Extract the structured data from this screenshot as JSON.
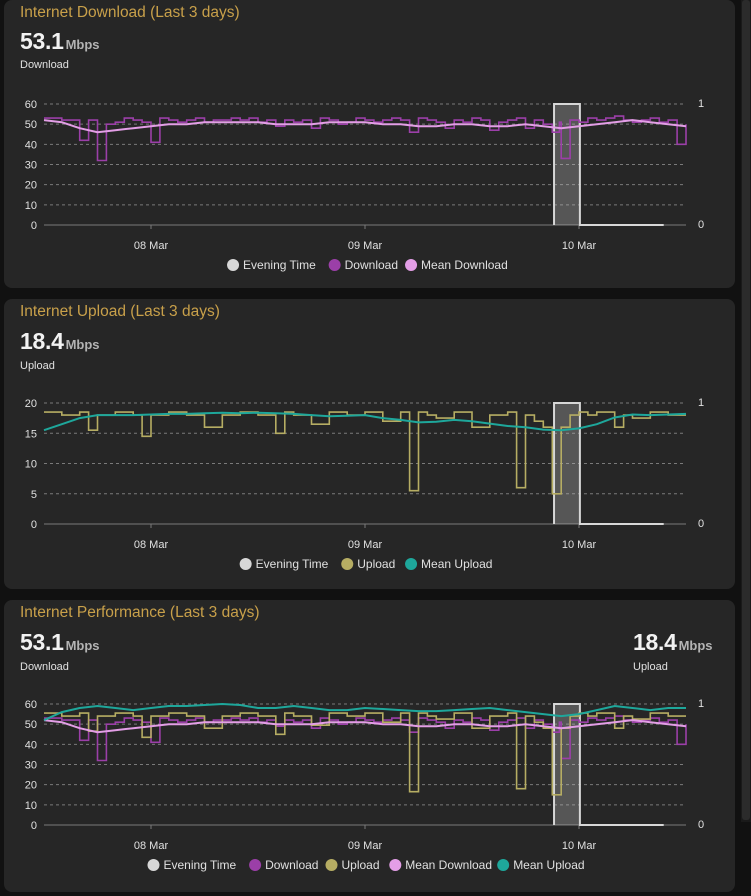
{
  "colors": {
    "title": "#c8a04a",
    "download": "#9b3fa8",
    "mean_download": "#e39ee6",
    "upload": "#b6ad63",
    "mean_upload": "#1ea79b",
    "evening": "#d7d7d7"
  },
  "cards": [
    {
      "title": "Internet Download (Last 3 days)",
      "stat_value": "53.1",
      "stat_unit": "Mbps",
      "stat_label": "Download",
      "legend": [
        "Evening Time",
        "Download",
        "Mean Download"
      ]
    },
    {
      "title": "Internet Upload (Last 3 days)",
      "stat_value": "18.4",
      "stat_unit": "Mbps",
      "stat_label": "Upload",
      "legend": [
        "Evening Time",
        "Upload",
        "Mean Upload"
      ]
    },
    {
      "title": "Internet Performance (Last 3 days)",
      "stat_value": "53.1",
      "stat_unit": "Mbps",
      "stat_label": "Download",
      "stat2_value": "18.4",
      "stat2_unit": "Mbps",
      "stat2_label": "Upload",
      "legend": [
        "Evening Time",
        "Download",
        "Upload",
        "Mean Download",
        "Mean Upload"
      ]
    }
  ],
  "chart_data": [
    {
      "type": "line",
      "x_unit": "hours from start (3-day window)",
      "x_range": [
        0,
        72
      ],
      "x_ticks": [
        {
          "x": 12,
          "label": "08 Mar"
        },
        {
          "x": 36,
          "label": "09 Mar"
        },
        {
          "x": 60,
          "label": "10 Mar"
        }
      ],
      "ylim": [
        0,
        60
      ],
      "y_ticks": [
        0,
        10,
        20,
        30,
        40,
        50,
        60
      ],
      "y2lim": [
        0,
        1
      ],
      "y2_ticks": [
        0,
        1
      ],
      "grid": true,
      "legend_position": "bottom",
      "evening_band": {
        "x_start": 57.2,
        "x_end": 60.1,
        "value_on": 1,
        "value_after": 0
      },
      "series": [
        {
          "name": "Download",
          "color_key": "download",
          "step": true,
          "x": [
            0,
            2,
            3,
            4,
            5,
            6,
            7,
            8,
            9,
            10,
            11,
            12,
            13,
            14,
            15,
            16,
            17,
            18,
            19,
            20,
            21,
            22,
            23,
            24,
            25,
            26,
            27,
            28,
            29,
            30,
            31,
            32,
            33,
            34,
            35,
            36,
            37,
            38,
            39,
            40,
            41,
            42,
            43,
            44,
            45,
            46,
            47,
            48,
            49,
            50,
            51,
            52,
            53,
            54,
            55,
            56,
            57,
            57.8,
            58,
            59,
            60,
            61,
            62,
            63,
            64,
            65,
            66,
            67,
            68,
            69,
            70,
            71,
            72
          ],
          "y": [
            53,
            52,
            52,
            42,
            52,
            32,
            50,
            51,
            53,
            52,
            51,
            41,
            53,
            52,
            51,
            52,
            53,
            51,
            52,
            52,
            53,
            52,
            53,
            51,
            52,
            49,
            52,
            51,
            52,
            48,
            53,
            52,
            50,
            51,
            53,
            52,
            51,
            52,
            53,
            52,
            46,
            53,
            52,
            51,
            48,
            52,
            51,
            53,
            52,
            47,
            51,
            52,
            53,
            48,
            52,
            50,
            46,
            51,
            33,
            52,
            51,
            53,
            52,
            53,
            54,
            52,
            51,
            52,
            53,
            51,
            52,
            40,
            50
          ]
        },
        {
          "name": "Mean Download",
          "color_key": "mean_download",
          "step": false,
          "x": [
            0,
            2,
            4,
            6,
            8,
            10,
            12,
            14,
            16,
            18,
            20,
            22,
            24,
            26,
            28,
            30,
            32,
            34,
            36,
            38,
            40,
            42,
            44,
            46,
            48,
            50,
            52,
            54,
            56,
            58,
            60,
            62,
            64,
            66,
            68,
            70,
            72
          ],
          "y": [
            52,
            51,
            48,
            46,
            47,
            48,
            49,
            50,
            50,
            51,
            51,
            51,
            51,
            50,
            50,
            50,
            51,
            51,
            51,
            50,
            50,
            49,
            49,
            50,
            50,
            49,
            49,
            50,
            49,
            48,
            49,
            50,
            51,
            52,
            51,
            50,
            49
          ]
        }
      ]
    },
    {
      "type": "line",
      "x_unit": "hours from start (3-day window)",
      "x_range": [
        0,
        72
      ],
      "x_ticks": [
        {
          "x": 12,
          "label": "08 Mar"
        },
        {
          "x": 36,
          "label": "09 Mar"
        },
        {
          "x": 60,
          "label": "10 Mar"
        }
      ],
      "ylim": [
        0,
        20
      ],
      "y_ticks": [
        0,
        5,
        10,
        15,
        20
      ],
      "y2lim": [
        0,
        1
      ],
      "y2_ticks": [
        0,
        1
      ],
      "grid": true,
      "legend_position": "bottom",
      "evening_band": {
        "x_start": 57.2,
        "x_end": 60.1,
        "value_on": 1,
        "value_after": 0
      },
      "series": [
        {
          "name": "Upload",
          "color_key": "upload",
          "step": true,
          "x": [
            0,
            2,
            4,
            5,
            6,
            8,
            10,
            11,
            12,
            14,
            16,
            18,
            20,
            22,
            24,
            26,
            27,
            28,
            30,
            32,
            34,
            36,
            38,
            40,
            41,
            42,
            43,
            44,
            46,
            48,
            50,
            52,
            53,
            54,
            55,
            56,
            57,
            58,
            59,
            60,
            61,
            62,
            64,
            65,
            66,
            68,
            70,
            72
          ],
          "y": [
            18.5,
            18,
            18.5,
            15.5,
            18,
            18.5,
            18,
            14.5,
            18,
            18.5,
            18,
            16,
            18,
            18.5,
            18,
            15,
            18.5,
            18,
            16.5,
            18.5,
            18,
            18.5,
            17,
            18.5,
            5.5,
            18.5,
            18,
            17.5,
            18.5,
            16,
            18,
            18.5,
            6,
            18,
            17,
            16,
            5,
            16,
            18,
            18.5,
            18,
            18.5,
            16,
            18,
            17.5,
            18.5,
            18,
            18
          ]
        },
        {
          "name": "Mean Upload",
          "color_key": "mean_upload",
          "step": false,
          "x": [
            0,
            2,
            4,
            6,
            8,
            10,
            12,
            14,
            16,
            18,
            20,
            22,
            24,
            26,
            28,
            30,
            32,
            34,
            36,
            38,
            40,
            42,
            44,
            46,
            48,
            50,
            52,
            54,
            56,
            58,
            60,
            62,
            64,
            66,
            68,
            70,
            72
          ],
          "y": [
            15.5,
            16.5,
            17.5,
            18,
            18,
            18,
            18.1,
            18.2,
            18.2,
            18.3,
            18.4,
            18.3,
            18.4,
            18.3,
            18.2,
            18,
            17.8,
            17.9,
            18,
            17.5,
            17.2,
            16.8,
            16.9,
            17.2,
            17,
            16.6,
            16.2,
            16,
            15.6,
            15.5,
            15.8,
            16.5,
            17.6,
            18.1,
            18,
            18.1,
            18.2
          ]
        }
      ]
    },
    {
      "type": "line",
      "x_unit": "hours from start (3-day window)",
      "x_range": [
        0,
        72
      ],
      "x_ticks": [
        {
          "x": 12,
          "label": "08 Mar"
        },
        {
          "x": 36,
          "label": "09 Mar"
        },
        {
          "x": 60,
          "label": "10 Mar"
        }
      ],
      "ylim": [
        0,
        60
      ],
      "y_ticks": [
        0,
        10,
        20,
        30,
        40,
        50,
        60
      ],
      "y2lim": [
        0,
        1
      ],
      "y2_ticks": [
        0,
        1
      ],
      "grid": true,
      "legend_position": "bottom",
      "evening_band": {
        "x_start": 57.2,
        "x_end": 60.1,
        "value_on": 1,
        "value_after": 0
      },
      "series": [
        {
          "name": "Download",
          "color_key": "download",
          "step": true,
          "x": [
            0,
            2,
            3,
            4,
            5,
            6,
            7,
            8,
            9,
            10,
            11,
            12,
            13,
            14,
            15,
            16,
            17,
            18,
            19,
            20,
            21,
            22,
            23,
            24,
            25,
            26,
            27,
            28,
            29,
            30,
            31,
            32,
            33,
            34,
            35,
            36,
            37,
            38,
            39,
            40,
            41,
            42,
            43,
            44,
            45,
            46,
            47,
            48,
            49,
            50,
            51,
            52,
            53,
            54,
            55,
            56,
            57,
            57.8,
            58,
            59,
            60,
            61,
            62,
            63,
            64,
            65,
            66,
            67,
            68,
            69,
            70,
            71,
            72
          ],
          "y": [
            53,
            52,
            52,
            42,
            52,
            32,
            50,
            51,
            53,
            52,
            51,
            41,
            53,
            52,
            51,
            52,
            53,
            51,
            52,
            52,
            53,
            52,
            53,
            51,
            52,
            49,
            52,
            51,
            52,
            48,
            53,
            52,
            50,
            51,
            53,
            52,
            51,
            52,
            53,
            52,
            46,
            53,
            52,
            51,
            48,
            52,
            51,
            53,
            52,
            47,
            51,
            52,
            53,
            48,
            52,
            50,
            46,
            51,
            33,
            52,
            51,
            53,
            52,
            53,
            54,
            52,
            51,
            52,
            53,
            51,
            52,
            40,
            50
          ]
        },
        {
          "name": "Upload",
          "color_key": "upload",
          "step": true,
          "x": [
            0,
            2,
            4,
            5,
            6,
            8,
            10,
            11,
            12,
            14,
            16,
            18,
            20,
            22,
            24,
            26,
            27,
            28,
            30,
            32,
            34,
            36,
            38,
            40,
            41,
            42,
            43,
            44,
            46,
            48,
            50,
            52,
            53,
            54,
            55,
            56,
            57,
            58,
            59,
            60,
            61,
            62,
            64,
            65,
            66,
            68,
            70,
            72
          ],
          "y": [
            55.5,
            54,
            55.5,
            46.5,
            54,
            55.5,
            54,
            43.5,
            54,
            55.5,
            54,
            48,
            54,
            55.5,
            54,
            45,
            55.5,
            54,
            49.5,
            55.5,
            54,
            55.5,
            51,
            55.5,
            16.5,
            55.5,
            54,
            52.5,
            55.5,
            48,
            54,
            55.5,
            18,
            54,
            51,
            48,
            15,
            48,
            54,
            55.5,
            54,
            55.5,
            48,
            54,
            52.5,
            55.5,
            54,
            54
          ]
        },
        {
          "name": "Mean Download",
          "color_key": "mean_download",
          "step": false,
          "x": [
            0,
            2,
            4,
            6,
            8,
            10,
            12,
            14,
            16,
            18,
            20,
            22,
            24,
            26,
            28,
            30,
            32,
            34,
            36,
            38,
            40,
            42,
            44,
            46,
            48,
            50,
            52,
            54,
            56,
            58,
            60,
            62,
            64,
            66,
            68,
            70,
            72
          ],
          "y": [
            52,
            51,
            48,
            46,
            47,
            48,
            49,
            50,
            50,
            51,
            51,
            51,
            51,
            50,
            50,
            50,
            51,
            51,
            51,
            50,
            50,
            49,
            49,
            50,
            50,
            49,
            49,
            50,
            49,
            48,
            49,
            50,
            51,
            52,
            51,
            50,
            49
          ]
        },
        {
          "name": "Mean Upload",
          "color_key": "mean_upload",
          "step": false,
          "x": [
            0,
            2,
            4,
            6,
            8,
            10,
            12,
            14,
            16,
            18,
            20,
            22,
            24,
            26,
            28,
            30,
            32,
            34,
            36,
            38,
            40,
            42,
            44,
            46,
            48,
            50,
            52,
            54,
            56,
            58,
            60,
            62,
            64,
            66,
            68,
            70,
            72
          ],
          "y": [
            52,
            56,
            58,
            59,
            58,
            57,
            58,
            59,
            59,
            59.5,
            60,
            59.5,
            58,
            58,
            59,
            58,
            57,
            57,
            58,
            57.5,
            57,
            56.5,
            56.5,
            57,
            57.5,
            58,
            57,
            56,
            55,
            54,
            55,
            57,
            59,
            58,
            57,
            58,
            58
          ]
        }
      ]
    }
  ]
}
